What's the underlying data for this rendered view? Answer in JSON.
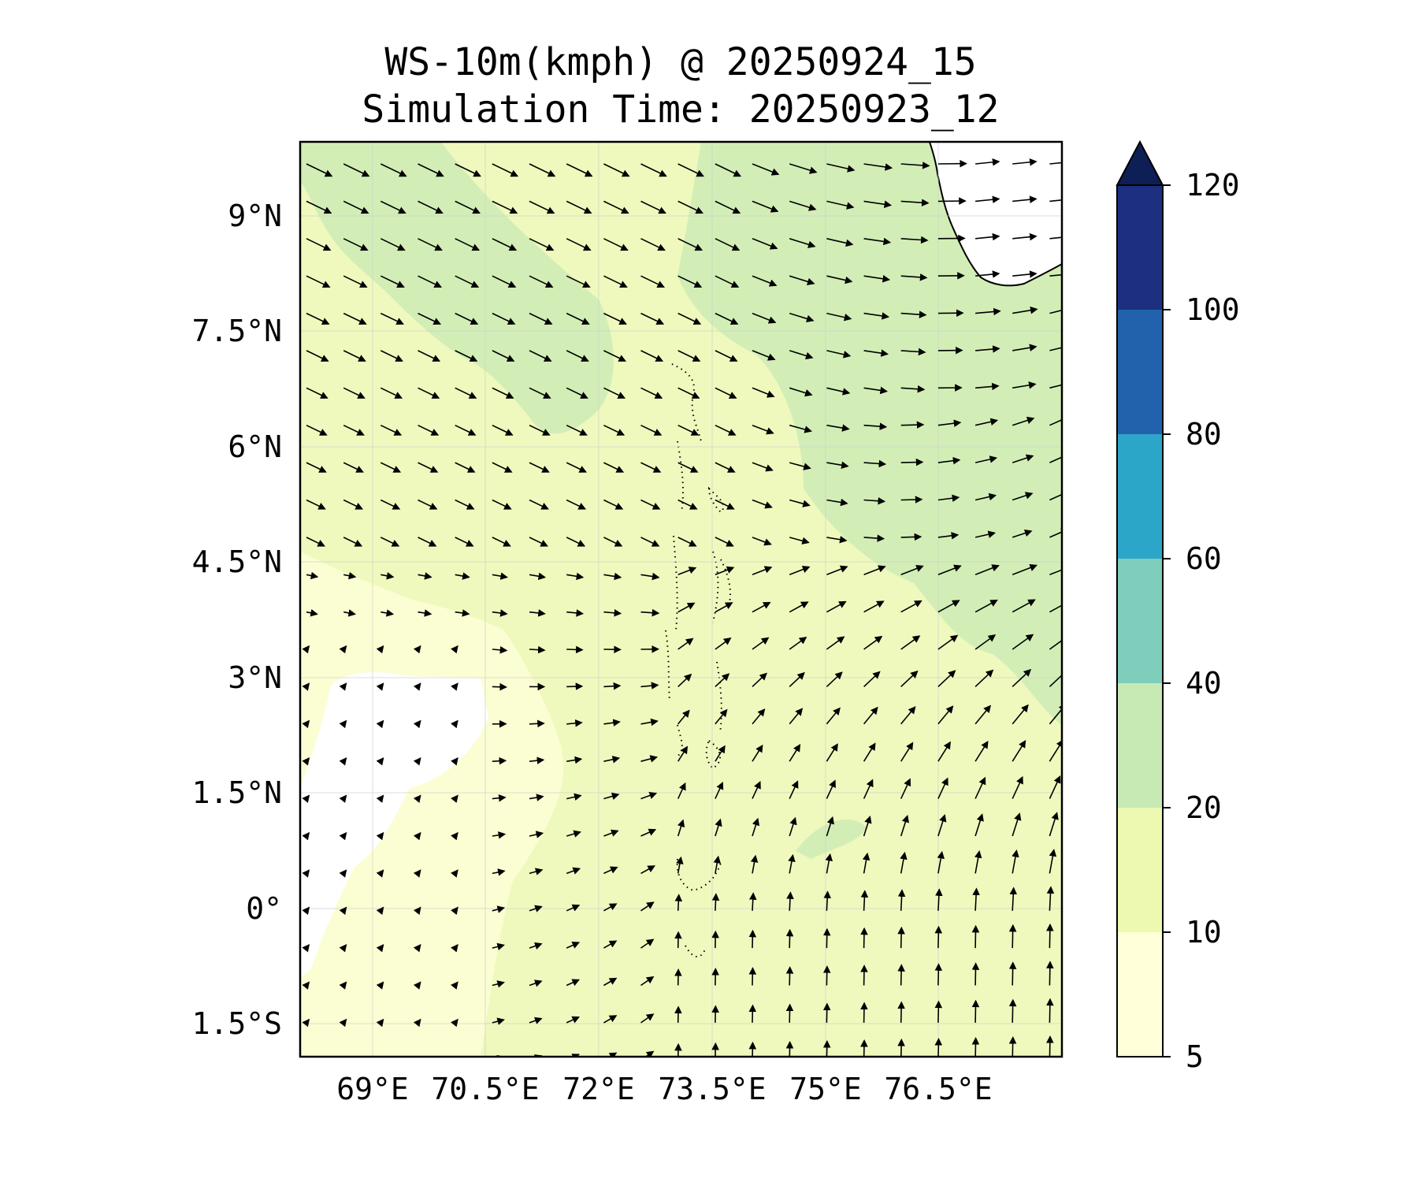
{
  "title": {
    "line1": "WS-10m(kmph) @ 20250924_15",
    "line2": "Simulation Time: 20250923_12"
  },
  "map": {
    "lon_range": [
      67.8,
      77.9
    ],
    "lat_range": [
      -1.95,
      10.0
    ],
    "x_ticks": [
      {
        "value": 69.0,
        "label": "69°E"
      },
      {
        "value": 70.5,
        "label": "70.5°E"
      },
      {
        "value": 72.0,
        "label": "72°E"
      },
      {
        "value": 73.5,
        "label": "73.5°E"
      },
      {
        "value": 75.0,
        "label": "75°E"
      },
      {
        "value": 76.5,
        "label": "76.5°E"
      }
    ],
    "y_ticks": [
      {
        "value": 9.0,
        "label": "9°N"
      },
      {
        "value": 7.5,
        "label": "7.5°N"
      },
      {
        "value": 6.0,
        "label": "6°N"
      },
      {
        "value": 4.5,
        "label": "4.5°N"
      },
      {
        "value": 3.0,
        "label": "3°N"
      },
      {
        "value": 1.5,
        "label": "1.5°N"
      },
      {
        "value": 0.0,
        "label": "0°"
      },
      {
        "value": -1.5,
        "label": "1.5°S"
      }
    ],
    "grid": true,
    "colors": {
      "under_5": "#ffffff",
      "5_10": "#fbfed2",
      "10_20": "#eff9bd",
      "20_40": "#d2eeb6"
    }
  },
  "colorbar": {
    "levels": [
      5,
      10,
      20,
      40,
      60,
      80,
      100,
      120
    ],
    "labels": [
      "5",
      "10",
      "20",
      "40",
      "60",
      "80",
      "100",
      "120"
    ],
    "colors": [
      "#ffffd9",
      "#edf8b1",
      "#c7e9b4",
      "#7fcdbb",
      "#2ca6c8",
      "#2262ad",
      "#1c2f80"
    ],
    "extend_color": "#0d1f55",
    "extend": "max"
  }
}
